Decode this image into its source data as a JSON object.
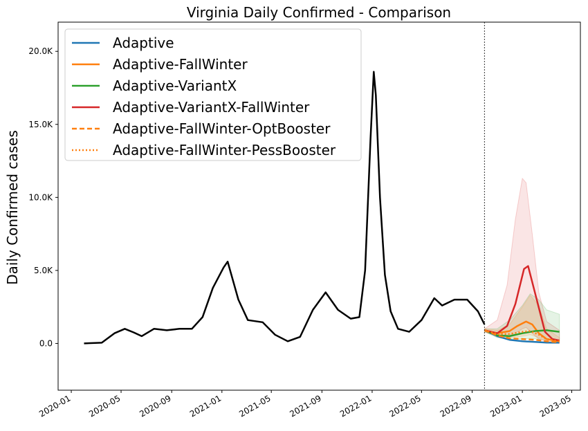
{
  "chart_data": {
    "type": "line",
    "title": "Virginia Daily Confirmed - Comparison",
    "xlabel": "",
    "ylabel": "Daily Confirmed cases",
    "xlim": [
      "2019-11-30",
      "2023-05-22"
    ],
    "ylim": [
      -3200,
      22000
    ],
    "grid": false,
    "legend_placement": "upper-left",
    "forecast_start": "2022-10-01",
    "x_ticks": [
      "2020-01",
      "2020-05",
      "2020-09",
      "2021-01",
      "2021-05",
      "2021-09",
      "2022-01",
      "2022-05",
      "2022-09",
      "2023-01",
      "2023-05"
    ],
    "y_ticks": [
      {
        "value": 0,
        "label": "0.0"
      },
      {
        "value": 5000,
        "label": "5.0K"
      },
      {
        "value": 10000,
        "label": "10.0K"
      },
      {
        "value": 15000,
        "label": "15.0K"
      },
      {
        "value": 20000,
        "label": "20.0K"
      }
    ],
    "legend": [
      {
        "name": "Adaptive",
        "color": "#1f77b4",
        "style": "solid"
      },
      {
        "name": "Adaptive-FallWinter",
        "color": "#ff7f0e",
        "style": "solid"
      },
      {
        "name": "Adaptive-VariantX",
        "color": "#2ca02c",
        "style": "solid"
      },
      {
        "name": "Adaptive-VariantX-FallWinter",
        "color": "#d62728",
        "style": "solid"
      },
      {
        "name": "Adaptive-FallWinter-OptBooster",
        "color": "#ff7f0e",
        "style": "dashed"
      },
      {
        "name": "Adaptive-FallWinter-PessBooster",
        "color": "#ff7f0e",
        "style": "dotted"
      }
    ],
    "observed_smoothed": {
      "name": "",
      "color": "#000000",
      "x": [
        "2020-02-01",
        "2020-03-15",
        "2020-04-15",
        "2020-05-10",
        "2020-06-01",
        "2020-06-20",
        "2020-07-20",
        "2020-08-20",
        "2020-09-20",
        "2020-10-20",
        "2020-11-15",
        "2020-12-10",
        "2021-01-05",
        "2021-01-15",
        "2021-02-10",
        "2021-03-05",
        "2021-04-10",
        "2021-05-10",
        "2021-06-10",
        "2021-07-10",
        "2021-08-10",
        "2021-09-10",
        "2021-10-10",
        "2021-11-10",
        "2021-12-01",
        "2021-12-15",
        "2021-12-28",
        "2022-01-05",
        "2022-01-10",
        "2022-01-20",
        "2022-02-01",
        "2022-02-15",
        "2022-03-05",
        "2022-04-01",
        "2022-05-01",
        "2022-06-01",
        "2022-06-20",
        "2022-07-20",
        "2022-08-20",
        "2022-09-15",
        "2022-10-01"
      ],
      "y": [
        0,
        50,
        700,
        1000,
        750,
        500,
        1000,
        900,
        1000,
        1000,
        1800,
        3800,
        5200,
        5600,
        3000,
        1600,
        1450,
        600,
        150,
        450,
        2300,
        3500,
        2300,
        1700,
        1800,
        5000,
        14000,
        18600,
        17000,
        10000,
        4700,
        2200,
        1000,
        800,
        1600,
        3100,
        2600,
        3000,
        3000,
        2200,
        1300
      ]
    },
    "observed_daily_scatter_note": "",
    "series": [
      {
        "name": "Adaptive",
        "color": "#1f77b4",
        "style": "solid",
        "x": [
          "2022-10-01",
          "2022-11-01",
          "2022-12-01",
          "2023-01-01",
          "2023-02-01",
          "2023-03-01",
          "2023-04-01"
        ],
        "y": [
          900,
          500,
          250,
          150,
          100,
          60,
          50
        ]
      },
      {
        "name": "Adaptive-FallWinter",
        "color": "#ff7f0e",
        "style": "solid",
        "x": [
          "2022-10-01",
          "2022-11-01",
          "2022-12-01",
          "2022-12-20",
          "2023-01-10",
          "2023-01-25",
          "2023-02-10",
          "2023-03-01",
          "2023-04-01"
        ],
        "y": [
          900,
          700,
          850,
          1200,
          1500,
          1300,
          700,
          300,
          150
        ]
      },
      {
        "name": "Adaptive-VariantX",
        "color": "#2ca02c",
        "style": "solid",
        "x": [
          "2022-10-01",
          "2022-11-01",
          "2022-12-01",
          "2023-01-01",
          "2023-02-01",
          "2023-03-01",
          "2023-04-01"
        ],
        "y": [
          900,
          550,
          500,
          700,
          850,
          900,
          800
        ]
      },
      {
        "name": "Adaptive-VariantX-FallWinter",
        "color": "#d62728",
        "style": "solid",
        "x": [
          "2022-10-01",
          "2022-11-01",
          "2022-11-25",
          "2022-12-15",
          "2023-01-05",
          "2023-01-15",
          "2023-02-05",
          "2023-02-25",
          "2023-03-15",
          "2023-04-01"
        ],
        "y": [
          900,
          700,
          1200,
          2700,
          5100,
          5300,
          3000,
          800,
          300,
          200
        ]
      },
      {
        "name": "Adaptive-FallWinter-OptBooster",
        "color": "#ff7f0e",
        "style": "dashed",
        "x": [
          "2022-10-01",
          "2022-11-01",
          "2022-12-01",
          "2023-01-01",
          "2023-02-01",
          "2023-03-01",
          "2023-04-01"
        ],
        "y": [
          900,
          550,
          350,
          300,
          250,
          150,
          80
        ]
      },
      {
        "name": "Adaptive-FallWinter-PessBooster",
        "color": "#ff7f0e",
        "style": "dotted",
        "x": [
          "2022-10-01",
          "2022-11-01",
          "2022-12-01",
          "2023-01-01",
          "2023-01-20",
          "2023-02-10",
          "2023-03-01",
          "2023-04-01"
        ],
        "y": [
          900,
          650,
          650,
          800,
          850,
          600,
          300,
          150
        ]
      }
    ],
    "bands": [
      {
        "color": "#d62728",
        "x": [
          "2022-10-01",
          "2022-11-01",
          "2022-11-25",
          "2022-12-15",
          "2023-01-01",
          "2023-01-10",
          "2023-01-25",
          "2023-02-10",
          "2023-03-01",
          "2023-04-01"
        ],
        "upper": [
          1000,
          1600,
          4000,
          8500,
          11300,
          11000,
          7500,
          3500,
          1500,
          900
        ],
        "lower": [
          800,
          500,
          500,
          700,
          1000,
          1100,
          700,
          300,
          100,
          50
        ]
      },
      {
        "color": "#2ca02c",
        "x": [
          "2022-10-01",
          "2022-11-01",
          "2022-12-01",
          "2023-01-01",
          "2023-01-20",
          "2023-02-10",
          "2023-03-01",
          "2023-04-01"
        ],
        "upper": [
          1000,
          1000,
          1600,
          2600,
          3400,
          3000,
          2300,
          2000
        ],
        "lower": [
          800,
          400,
          300,
          300,
          350,
          300,
          250,
          200
        ]
      },
      {
        "color": "#ff7f0e",
        "x": [
          "2022-10-01",
          "2022-11-01",
          "2022-12-01",
          "2023-01-01",
          "2023-01-20",
          "2023-02-10",
          "2023-03-01",
          "2023-04-01"
        ],
        "upper": [
          1000,
          900,
          1300,
          2500,
          3300,
          2600,
          1000,
          400
        ],
        "lower": [
          800,
          500,
          400,
          500,
          600,
          400,
          150,
          80
        ]
      }
    ]
  }
}
